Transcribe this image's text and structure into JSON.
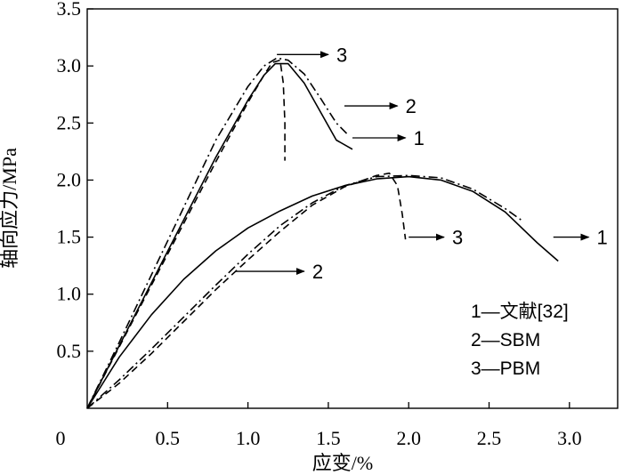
{
  "chart_data": {
    "type": "line",
    "xlabel": "应变/%",
    "ylabel": "轴向应力/MPa",
    "xlim": [
      0,
      3.3
    ],
    "ylim": [
      0,
      3.5
    ],
    "x_ticks": [
      "0",
      "0.5",
      "1.0",
      "1.5",
      "2.0",
      "2.5",
      "3.0"
    ],
    "y_ticks": [
      "0.5",
      "1.0",
      "1.5",
      "2.0",
      "2.5",
      "3.0",
      "3.5"
    ],
    "legend": [
      "1—文献[32]",
      "2—SBM",
      "3—PBM"
    ],
    "legend_position": "lower-right",
    "series": [
      {
        "name": "1",
        "group": "upper",
        "style": "solid",
        "x": [
          0,
          0.2,
          0.4,
          0.6,
          0.8,
          1.0,
          1.1,
          1.17,
          1.25,
          1.35,
          1.45,
          1.55,
          1.65
        ],
        "y": [
          0,
          0.55,
          1.1,
          1.65,
          2.2,
          2.7,
          2.92,
          3.02,
          3.02,
          2.85,
          2.6,
          2.35,
          2.27
        ]
      },
      {
        "name": "2",
        "group": "upper",
        "style": "dashdot",
        "x": [
          0,
          0.2,
          0.4,
          0.6,
          0.8,
          1.0,
          1.1,
          1.18,
          1.25,
          1.35,
          1.45,
          1.55,
          1.62
        ],
        "y": [
          0,
          0.58,
          1.17,
          1.76,
          2.35,
          2.82,
          3.0,
          3.07,
          3.05,
          2.93,
          2.72,
          2.5,
          2.4
        ]
      },
      {
        "name": "3",
        "group": "upper",
        "style": "dashed",
        "x": [
          0,
          0.2,
          0.4,
          0.6,
          0.8,
          1.0,
          1.1,
          1.15,
          1.2,
          1.22,
          1.23,
          1.23
        ],
        "y": [
          0,
          0.54,
          1.08,
          1.62,
          2.16,
          2.68,
          2.92,
          3.03,
          3.05,
          2.85,
          2.5,
          2.17
        ]
      },
      {
        "name": "1",
        "group": "lower",
        "style": "solid",
        "x": [
          0,
          0.2,
          0.4,
          0.6,
          0.8,
          1.0,
          1.2,
          1.4,
          1.6,
          1.8,
          2.0,
          2.2,
          2.4,
          2.6,
          2.8,
          2.93
        ],
        "y": [
          0,
          0.45,
          0.82,
          1.13,
          1.38,
          1.58,
          1.73,
          1.86,
          1.95,
          2.01,
          2.03,
          2.0,
          1.9,
          1.72,
          1.45,
          1.29
        ]
      },
      {
        "name": "2",
        "group": "lower",
        "style": "dashdot",
        "x": [
          0,
          0.2,
          0.4,
          0.6,
          0.8,
          1.0,
          1.2,
          1.4,
          1.6,
          1.8,
          2.0,
          2.2,
          2.4,
          2.6,
          2.7
        ],
        "y": [
          0,
          0.25,
          0.52,
          0.8,
          1.08,
          1.35,
          1.6,
          1.8,
          1.95,
          2.03,
          2.04,
          2.02,
          1.92,
          1.75,
          1.65
        ]
      },
      {
        "name": "3",
        "group": "lower",
        "style": "dashed",
        "x": [
          0,
          0.2,
          0.4,
          0.6,
          0.8,
          1.0,
          1.2,
          1.4,
          1.6,
          1.8,
          1.88,
          1.93,
          1.96,
          1.98
        ],
        "y": [
          0,
          0.22,
          0.48,
          0.76,
          1.04,
          1.3,
          1.55,
          1.78,
          1.94,
          2.04,
          2.06,
          1.95,
          1.7,
          1.48
        ]
      }
    ],
    "annotations": [
      {
        "text": "3",
        "arrow_from": [
          1.18,
          3.1
        ],
        "arrow_to": [
          1.5,
          3.1
        ],
        "label_at": [
          1.55,
          3.1
        ]
      },
      {
        "text": "2",
        "arrow_from": [
          1.6,
          2.65
        ],
        "arrow_to": [
          1.93,
          2.65
        ],
        "label_at": [
          1.98,
          2.65
        ]
      },
      {
        "text": "1",
        "arrow_from": [
          1.65,
          2.37
        ],
        "arrow_to": [
          1.98,
          2.37
        ],
        "label_at": [
          2.03,
          2.37
        ]
      },
      {
        "text": "3",
        "arrow_from": [
          2.0,
          1.5
        ],
        "arrow_to": [
          2.22,
          1.5
        ],
        "label_at": [
          2.27,
          1.5
        ]
      },
      {
        "text": "1",
        "arrow_from": [
          2.9,
          1.5
        ],
        "arrow_to": [
          3.12,
          1.5
        ],
        "label_at": [
          3.17,
          1.5
        ]
      },
      {
        "text": "2",
        "arrow_from": [
          0.92,
          1.2
        ],
        "arrow_to": [
          1.35,
          1.2
        ],
        "label_at": [
          1.4,
          1.2
        ]
      }
    ],
    "grid": false
  }
}
